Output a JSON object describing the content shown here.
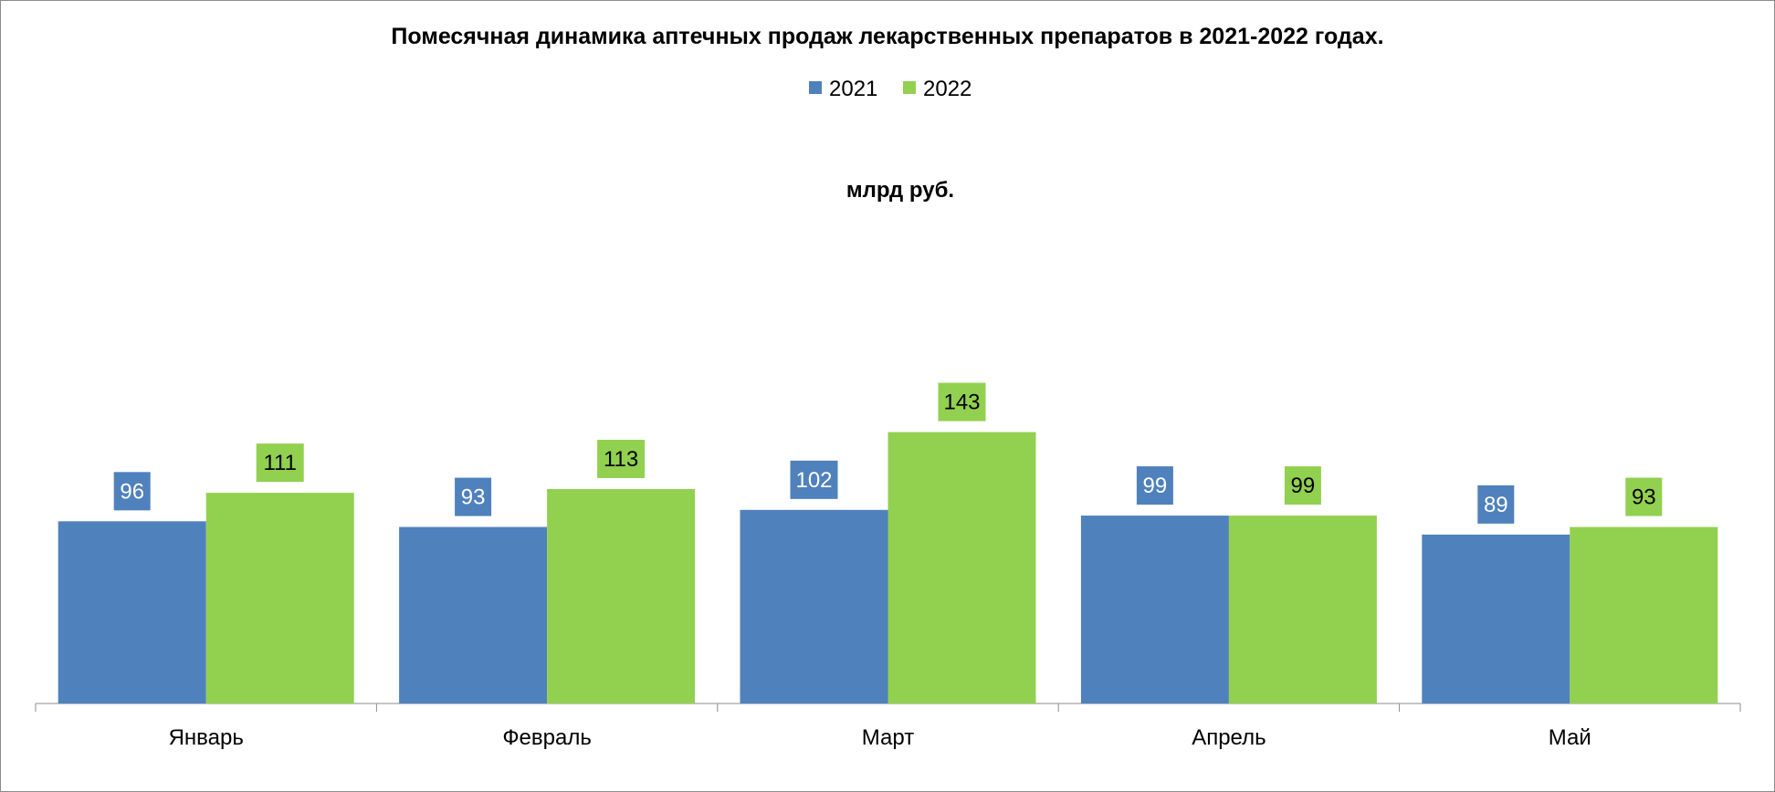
{
  "chart_data": {
    "type": "bar",
    "title": "Помесячная динамика аптечных продаж лекарственных препаратов в 2021-2022 годах.",
    "unit_label": "млрд руб.",
    "categories": [
      "Январь",
      "Февраль",
      "Март",
      "Апрель",
      "Май"
    ],
    "series": [
      {
        "name": "2021",
        "values": [
          96,
          93,
          102,
          99,
          89
        ],
        "color": "#4f81bd",
        "label_text_color": "#ffffff"
      },
      {
        "name": "2022",
        "values": [
          111,
          113,
          143,
          99,
          93
        ],
        "color": "#92d050",
        "label_text_color": "#000000"
      }
    ],
    "ylim": [
      0,
      190
    ],
    "grid": false,
    "legend_position": "top",
    "data_labels": true
  }
}
